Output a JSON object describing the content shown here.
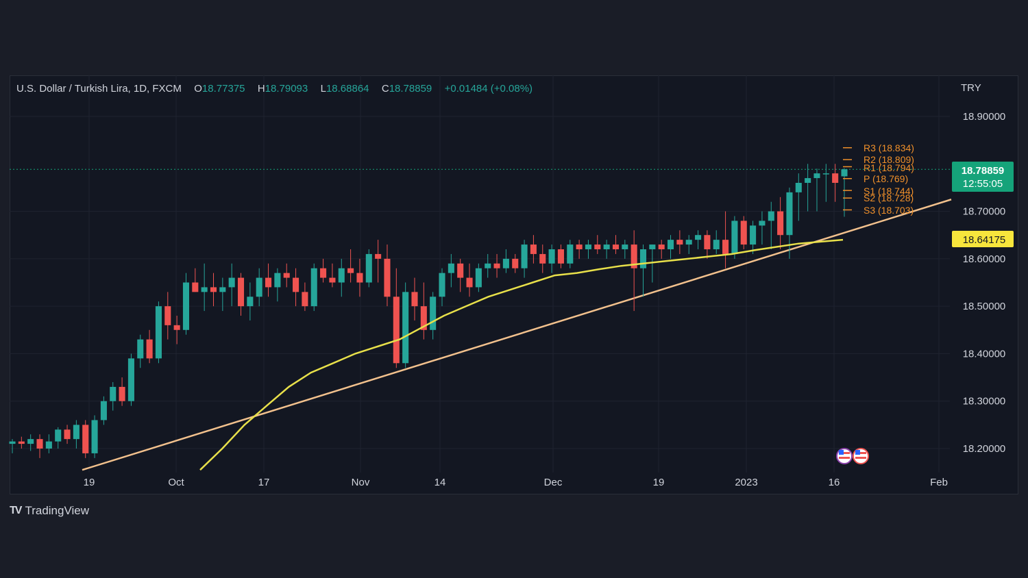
{
  "header": {
    "symbol": "U.S. Dollar / Turkish Lira, 1D, FXCM",
    "o_label": "O",
    "o_value": "18.77375",
    "h_label": "H",
    "h_value": "18.79093",
    "l_label": "L",
    "l_value": "18.68864",
    "c_label": "C",
    "c_value": "18.78859",
    "change": "+0.01484 (+0.08%)"
  },
  "currency": "TRY",
  "brand": "TradingView",
  "colors": {
    "up": "#26a69a",
    "down": "#ef5350",
    "pivot": "#f0902a",
    "ma": "#e8e04a",
    "trend": "#f2c18d",
    "last_price": "#15a37a",
    "ma_tag": "#f7e53c"
  },
  "chart_data": {
    "type": "candlestick",
    "yaxis": {
      "range": [
        18.15,
        18.97
      ],
      "ticks": [
        "18.90000",
        "18.70000",
        "18.60000",
        "18.50000",
        "18.40000",
        "18.30000",
        "18.20000"
      ]
    },
    "xaxis": {
      "ticks": [
        "19",
        "Oct",
        "17",
        "Nov",
        "14",
        "Dec",
        "19",
        "2023",
        "16",
        "Feb"
      ]
    },
    "last_price": {
      "value": "18.78859",
      "countdown": "12:55:05"
    },
    "ma_price": "18.64175",
    "pivots": [
      {
        "label": "R3 (18.834)",
        "value": 18.834
      },
      {
        "label": "R2 (18.809)",
        "value": 18.809
      },
      {
        "label": "R1 (18.794)",
        "value": 18.794
      },
      {
        "label": "P (18.769)",
        "value": 18.769
      },
      {
        "label": "S1 (18.744)",
        "value": 18.744
      },
      {
        "label": "S2 (18.728)",
        "value": 18.728
      },
      {
        "label": "S3 (18.703)",
        "value": 18.703
      }
    ],
    "candles": [
      [
        18.21,
        18.22,
        18.19,
        18.215
      ],
      [
        18.215,
        18.225,
        18.2,
        18.21
      ],
      [
        18.21,
        18.23,
        18.195,
        18.22
      ],
      [
        18.22,
        18.23,
        18.18,
        18.2
      ],
      [
        18.2,
        18.23,
        18.19,
        18.215
      ],
      [
        18.215,
        18.245,
        18.2,
        18.24
      ],
      [
        18.24,
        18.25,
        18.21,
        18.22
      ],
      [
        18.22,
        18.26,
        18.2,
        18.25
      ],
      [
        18.25,
        18.26,
        18.18,
        18.19
      ],
      [
        18.19,
        18.27,
        18.18,
        18.26
      ],
      [
        18.26,
        18.31,
        18.25,
        18.3
      ],
      [
        18.3,
        18.34,
        18.28,
        18.33
      ],
      [
        18.33,
        18.35,
        18.29,
        18.3
      ],
      [
        18.3,
        18.4,
        18.29,
        18.39
      ],
      [
        18.39,
        18.44,
        18.37,
        18.43
      ],
      [
        18.43,
        18.45,
        18.38,
        18.39
      ],
      [
        18.39,
        18.51,
        18.38,
        18.5
      ],
      [
        18.5,
        18.53,
        18.43,
        18.46
      ],
      [
        18.46,
        18.48,
        18.42,
        18.45
      ],
      [
        18.45,
        18.57,
        18.44,
        18.55
      ],
      [
        18.55,
        18.58,
        18.53,
        18.53
      ],
      [
        18.53,
        18.59,
        18.49,
        18.54
      ],
      [
        18.54,
        18.57,
        18.5,
        18.53
      ],
      [
        18.53,
        18.56,
        18.49,
        18.54
      ],
      [
        18.54,
        18.59,
        18.5,
        18.56
      ],
      [
        18.56,
        18.57,
        18.48,
        18.5
      ],
      [
        18.5,
        18.55,
        18.47,
        18.52
      ],
      [
        18.52,
        18.58,
        18.5,
        18.56
      ],
      [
        18.56,
        18.59,
        18.52,
        18.54
      ],
      [
        18.54,
        18.58,
        18.51,
        18.57
      ],
      [
        18.57,
        18.59,
        18.54,
        18.56
      ],
      [
        18.56,
        18.58,
        18.5,
        18.53
      ],
      [
        18.53,
        18.55,
        18.49,
        18.5
      ],
      [
        18.5,
        18.59,
        18.49,
        18.58
      ],
      [
        18.58,
        18.6,
        18.55,
        18.56
      ],
      [
        18.56,
        18.59,
        18.54,
        18.55
      ],
      [
        18.55,
        18.6,
        18.52,
        18.58
      ],
      [
        18.58,
        18.62,
        18.55,
        18.57
      ],
      [
        18.57,
        18.6,
        18.52,
        18.55
      ],
      [
        18.55,
        18.62,
        18.54,
        18.61
      ],
      [
        18.61,
        18.64,
        18.55,
        18.6
      ],
      [
        18.6,
        18.63,
        18.5,
        18.52
      ],
      [
        18.52,
        18.58,
        18.37,
        18.38
      ],
      [
        18.38,
        18.55,
        18.37,
        18.53
      ],
      [
        18.53,
        18.56,
        18.47,
        18.5
      ],
      [
        18.5,
        18.55,
        18.43,
        18.45
      ],
      [
        18.45,
        18.53,
        18.43,
        18.52
      ],
      [
        18.52,
        18.58,
        18.5,
        18.57
      ],
      [
        18.57,
        18.61,
        18.54,
        18.59
      ],
      [
        18.59,
        18.6,
        18.53,
        18.56
      ],
      [
        18.56,
        18.59,
        18.52,
        18.54
      ],
      [
        18.54,
        18.59,
        18.53,
        18.58
      ],
      [
        18.58,
        18.61,
        18.56,
        18.59
      ],
      [
        18.59,
        18.61,
        18.56,
        18.58
      ],
      [
        18.58,
        18.62,
        18.57,
        18.6
      ],
      [
        18.6,
        18.61,
        18.57,
        18.58
      ],
      [
        18.58,
        18.64,
        18.56,
        18.63
      ],
      [
        18.63,
        18.65,
        18.59,
        18.61
      ],
      [
        18.61,
        18.63,
        18.57,
        18.59
      ],
      [
        18.59,
        18.63,
        18.57,
        18.62
      ],
      [
        18.62,
        18.63,
        18.58,
        18.59
      ],
      [
        18.59,
        18.64,
        18.58,
        18.63
      ],
      [
        18.63,
        18.64,
        18.6,
        18.62
      ],
      [
        18.62,
        18.64,
        18.6,
        18.63
      ],
      [
        18.63,
        18.65,
        18.61,
        18.62
      ],
      [
        18.62,
        18.64,
        18.6,
        18.63
      ],
      [
        18.63,
        18.65,
        18.61,
        18.62
      ],
      [
        18.62,
        18.64,
        18.6,
        18.63
      ],
      [
        18.63,
        18.66,
        18.49,
        18.58
      ],
      [
        18.58,
        18.63,
        18.52,
        18.62
      ],
      [
        18.62,
        18.63,
        18.55,
        18.63
      ],
      [
        18.63,
        18.64,
        18.6,
        18.62
      ],
      [
        18.62,
        18.65,
        18.6,
        18.64
      ],
      [
        18.64,
        18.66,
        18.61,
        18.63
      ],
      [
        18.63,
        18.65,
        18.61,
        18.64
      ],
      [
        18.64,
        18.66,
        18.62,
        18.65
      ],
      [
        18.65,
        18.66,
        18.6,
        18.62
      ],
      [
        18.62,
        18.66,
        18.61,
        18.64
      ],
      [
        18.64,
        18.7,
        18.58,
        18.61
      ],
      [
        18.61,
        18.69,
        18.6,
        18.68
      ],
      [
        18.68,
        18.69,
        18.62,
        18.63
      ],
      [
        18.63,
        18.68,
        18.61,
        18.67
      ],
      [
        18.67,
        18.7,
        18.63,
        18.68
      ],
      [
        18.68,
        18.72,
        18.62,
        18.7
      ],
      [
        18.7,
        18.73,
        18.62,
        18.65
      ],
      [
        18.65,
        18.75,
        18.6,
        18.74
      ],
      [
        18.74,
        18.78,
        18.68,
        18.76
      ],
      [
        18.76,
        18.8,
        18.7,
        18.77
      ],
      [
        18.77,
        18.79,
        18.7,
        18.78
      ],
      [
        18.78,
        18.8,
        18.72,
        18.78
      ],
      [
        18.78,
        18.8,
        18.72,
        18.76
      ],
      [
        18.77375,
        18.79093,
        18.68864,
        18.78859
      ]
    ],
    "ma": [
      18.155,
      18.2,
      18.25,
      18.29,
      18.33,
      18.36,
      18.38,
      18.4,
      18.415,
      18.43,
      18.455,
      18.48,
      18.5,
      18.52,
      18.535,
      18.55,
      18.565,
      18.57,
      18.578,
      18.585,
      18.59,
      18.595,
      18.6,
      18.605,
      18.61,
      18.618,
      18.625,
      18.632,
      18.636,
      18.64
    ],
    "trendline": {
      "start": 18.155,
      "end": 18.725
    }
  }
}
